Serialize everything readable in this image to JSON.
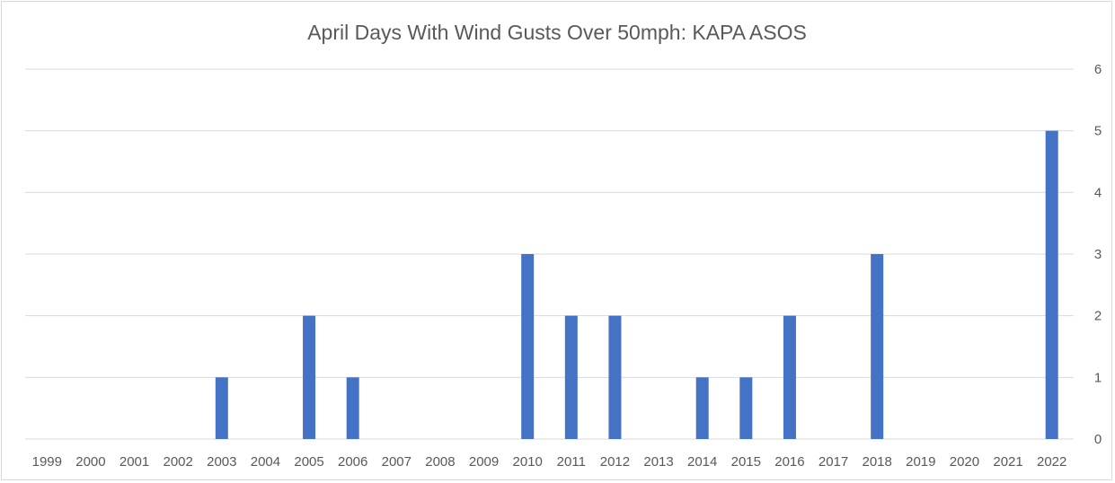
{
  "chart_data": {
    "type": "bar",
    "title": "April Days With Wind Gusts Over 50mph: KAPA ASOS",
    "categories": [
      "1999",
      "2000",
      "2001",
      "2002",
      "2003",
      "2004",
      "2005",
      "2006",
      "2007",
      "2008",
      "2009",
      "2010",
      "2011",
      "2012",
      "2013",
      "2014",
      "2015",
      "2016",
      "2017",
      "2018",
      "2019",
      "2020",
      "2021",
      "2022"
    ],
    "values": [
      0,
      0,
      0,
      0,
      1,
      0,
      2,
      1,
      0,
      0,
      0,
      3,
      2,
      2,
      0,
      1,
      1,
      2,
      0,
      3,
      0,
      0,
      0,
      5
    ],
    "xlabel": "",
    "ylabel": "",
    "ylim": [
      0,
      6
    ],
    "yticks": [
      0,
      1,
      2,
      3,
      4,
      5,
      6
    ],
    "y_axis_side": "right",
    "grid": true,
    "legend": "none",
    "bar_color": "#4472c4"
  }
}
